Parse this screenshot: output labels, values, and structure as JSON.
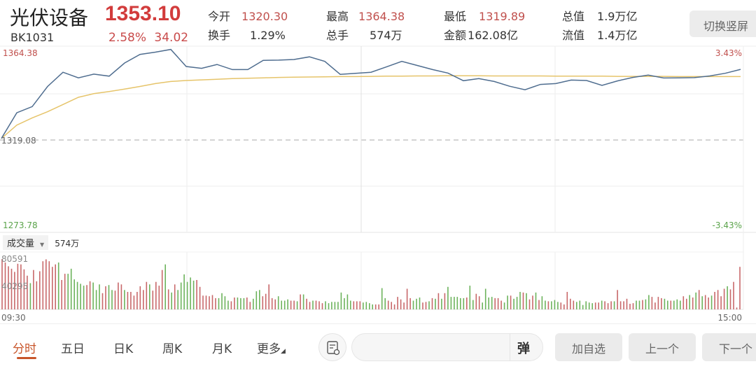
{
  "header": {
    "name": "光伏设备",
    "code": "BK1031",
    "price": "1353.10",
    "change_pct": "2.58%",
    "change": "34.02",
    "switch_label": "切换竖屏",
    "stats": [
      {
        "label": "今开",
        "value": "1320.30",
        "color": "red"
      },
      {
        "label": "换手",
        "value": "1.29%",
        "color": "normal"
      },
      {
        "label": "最高",
        "value": "1364.38",
        "color": "red"
      },
      {
        "label": "总手",
        "value": "574万",
        "color": "normal"
      },
      {
        "label": "最低",
        "value": "1319.89",
        "color": "red"
      },
      {
        "label": "金额",
        "value": "162.08亿",
        "color": "normal"
      },
      {
        "label": "总值",
        "value": "1.9万亿",
        "color": "normal"
      },
      {
        "label": "流值",
        "value": "1.4万亿",
        "color": "normal"
      }
    ]
  },
  "colors": {
    "up": "#c0504d",
    "down": "#5aa34a",
    "price_line": "#4f6d8f",
    "avg_line": "#e6c46a",
    "bar_up": "#c8686a",
    "bar_down": "#6db35c",
    "accent": "#c8552a"
  },
  "chart_data": {
    "type": "line",
    "price_axis": {
      "max": "1364.38",
      "ref": "1319.08",
      "min": "1273.78",
      "max_pct": "3.43%",
      "min_pct": "-3.43%",
      "ylim": [
        1273.78,
        1364.38
      ]
    },
    "x_labels": {
      "start": "09:30",
      "end": "15:00"
    },
    "interval_minutes": 5,
    "series": [
      {
        "key": "price",
        "values": [
          1319.5,
          1332,
          1335,
          1344.8,
          1351.7,
          1349,
          1350.8,
          1349.8,
          1356.2,
          1360.4,
          1361.5,
          1362.8,
          1354.5,
          1353.6,
          1355.5,
          1353,
          1353,
          1357.5,
          1357.6,
          1357.9,
          1359.2,
          1357,
          1350.7,
          1351.2,
          1351.7,
          1354.3,
          1357,
          1355,
          1353,
          1351.3,
          1347.6,
          1348.6,
          1347.2,
          1344.9,
          1343.2,
          1345.8,
          1346.2,
          1347.9,
          1347.7,
          1345.3,
          1347.5,
          1349.2,
          1350.3,
          1348.9,
          1349,
          1349.1,
          1349.9,
          1351.2,
          1353.1
        ]
      },
      {
        "key": "average",
        "values": [
          1319.5,
          1326,
          1329.5,
          1332.5,
          1336,
          1339.5,
          1341.3,
          1342.3,
          1343.5,
          1344.8,
          1346.2,
          1347.2,
          1347.7,
          1348,
          1348.3,
          1348.6,
          1348.8,
          1349,
          1349.2,
          1349.3,
          1349.4,
          1349.5,
          1349.6,
          1349.6,
          1349.7,
          1349.8,
          1349.8,
          1349.9,
          1349.9,
          1350,
          1350,
          1350,
          1349.9,
          1349.9,
          1349.9,
          1349.9,
          1349.8,
          1349.8,
          1349.8,
          1349.8,
          1349.7,
          1349.7,
          1349.7,
          1349.7,
          1349.6,
          1349.6,
          1349.6,
          1349.6,
          1349.6
        ]
      }
    ],
    "volume": {
      "label": "成交量",
      "total": "574万",
      "max_label": "80591",
      "mid_label": "40295",
      "ylim": [
        0,
        80591
      ],
      "values": [
        80591,
        75000,
        69000,
        65000,
        60000,
        73000,
        72000,
        64000,
        54000,
        42000,
        63000,
        45000,
        61000,
        77000,
        80000,
        77000,
        68000,
        72000,
        75000,
        47000,
        57000,
        57000,
        65000,
        48000,
        44000,
        41000,
        38000,
        39000,
        45000,
        43000,
        31000,
        40000,
        26000,
        37000,
        39000,
        31000,
        30000,
        43000,
        40000,
        31000,
        28000,
        28000,
        22000,
        28000,
        37000,
        31000,
        44000,
        40000,
        30000,
        44000,
        38000,
        63000,
        72000,
        32000,
        27000,
        40000,
        31000,
        43000,
        56000,
        44000,
        51000,
        46000,
        47000,
        36000,
        22000,
        22000,
        21000,
        23000,
        18000,
        18000,
        26000,
        21000,
        14000,
        13000,
        19000,
        19000,
        18000,
        18000,
        19000,
        12000,
        17000,
        29000,
        31000,
        21000,
        25000,
        40000,
        18000,
        16000,
        21000,
        14000,
        14000,
        16000,
        14000,
        14000,
        13000,
        24000,
        24000,
        17000,
        12000,
        14000,
        14000,
        13000,
        10000,
        13000,
        10000,
        12000,
        12000,
        12000,
        27000,
        18000,
        24000,
        14000,
        13000,
        13000,
        13000,
        11000,
        12000,
        10000,
        8000,
        8000,
        8000,
        34000,
        18000,
        14000,
        12000,
        8000,
        20000,
        16000,
        11000,
        33000,
        18000,
        14000,
        17000,
        19000,
        11000,
        12000,
        13000,
        18000,
        17000,
        26000,
        17000,
        26000,
        36000,
        20000,
        20000,
        20000,
        18000,
        18000,
        19000,
        38000,
        15000,
        25000,
        21000,
        11000,
        33000,
        19000,
        20000,
        18000,
        18000,
        14000,
        11000,
        22000,
        22000,
        17000,
        20000,
        28000,
        27000,
        26000,
        16000,
        22000,
        27000,
        15000,
        21000,
        14000,
        13000,
        13000,
        15000,
        12000,
        11000,
        8000,
        28000,
        17000,
        14000,
        12000,
        14000,
        7000,
        13000,
        11000,
        10000,
        11000,
        11000,
        14000,
        13000,
        10000,
        13000,
        13000,
        31000,
        13000,
        13000,
        17000,
        9000,
        10000,
        14000,
        14000,
        15000,
        16000,
        23000,
        20000,
        11000,
        20000,
        18000,
        17000,
        14000,
        14000,
        14000,
        16000,
        14000,
        21000,
        17000,
        23000,
        19000,
        27000,
        31000,
        21000,
        23000,
        19000,
        22000,
        28000,
        31000,
        21000,
        33000,
        37000,
        32000,
        44000,
        3000,
        68000
      ],
      "directions": "rrrrrrrrrgrrrrrrrrgrrggggggrrgggrrggrrrgrrrrrrrgrrrrgrgrggggggrrrrrrrggggrrgggrrgggrrrrrggggrrgrgrrgrrrgggggggggrrrggggrrggrrrrrrrrgggrrgrgrgrggggggrggrrggggrrrggrgggrgrrgrggrgggrrrrrggggggrrgrrrgrrrrrrggrggrrrrggrgggrrgrgrgrrgrrrrgr"
    }
  },
  "toolbar": {
    "tabs": [
      "分时",
      "五日",
      "日K",
      "周K",
      "月K",
      "更多"
    ],
    "active_tab": 0,
    "danmu_label": "弹",
    "comment_placeholder": "",
    "buttons": [
      "加自选",
      "上一个",
      "下一个"
    ]
  }
}
